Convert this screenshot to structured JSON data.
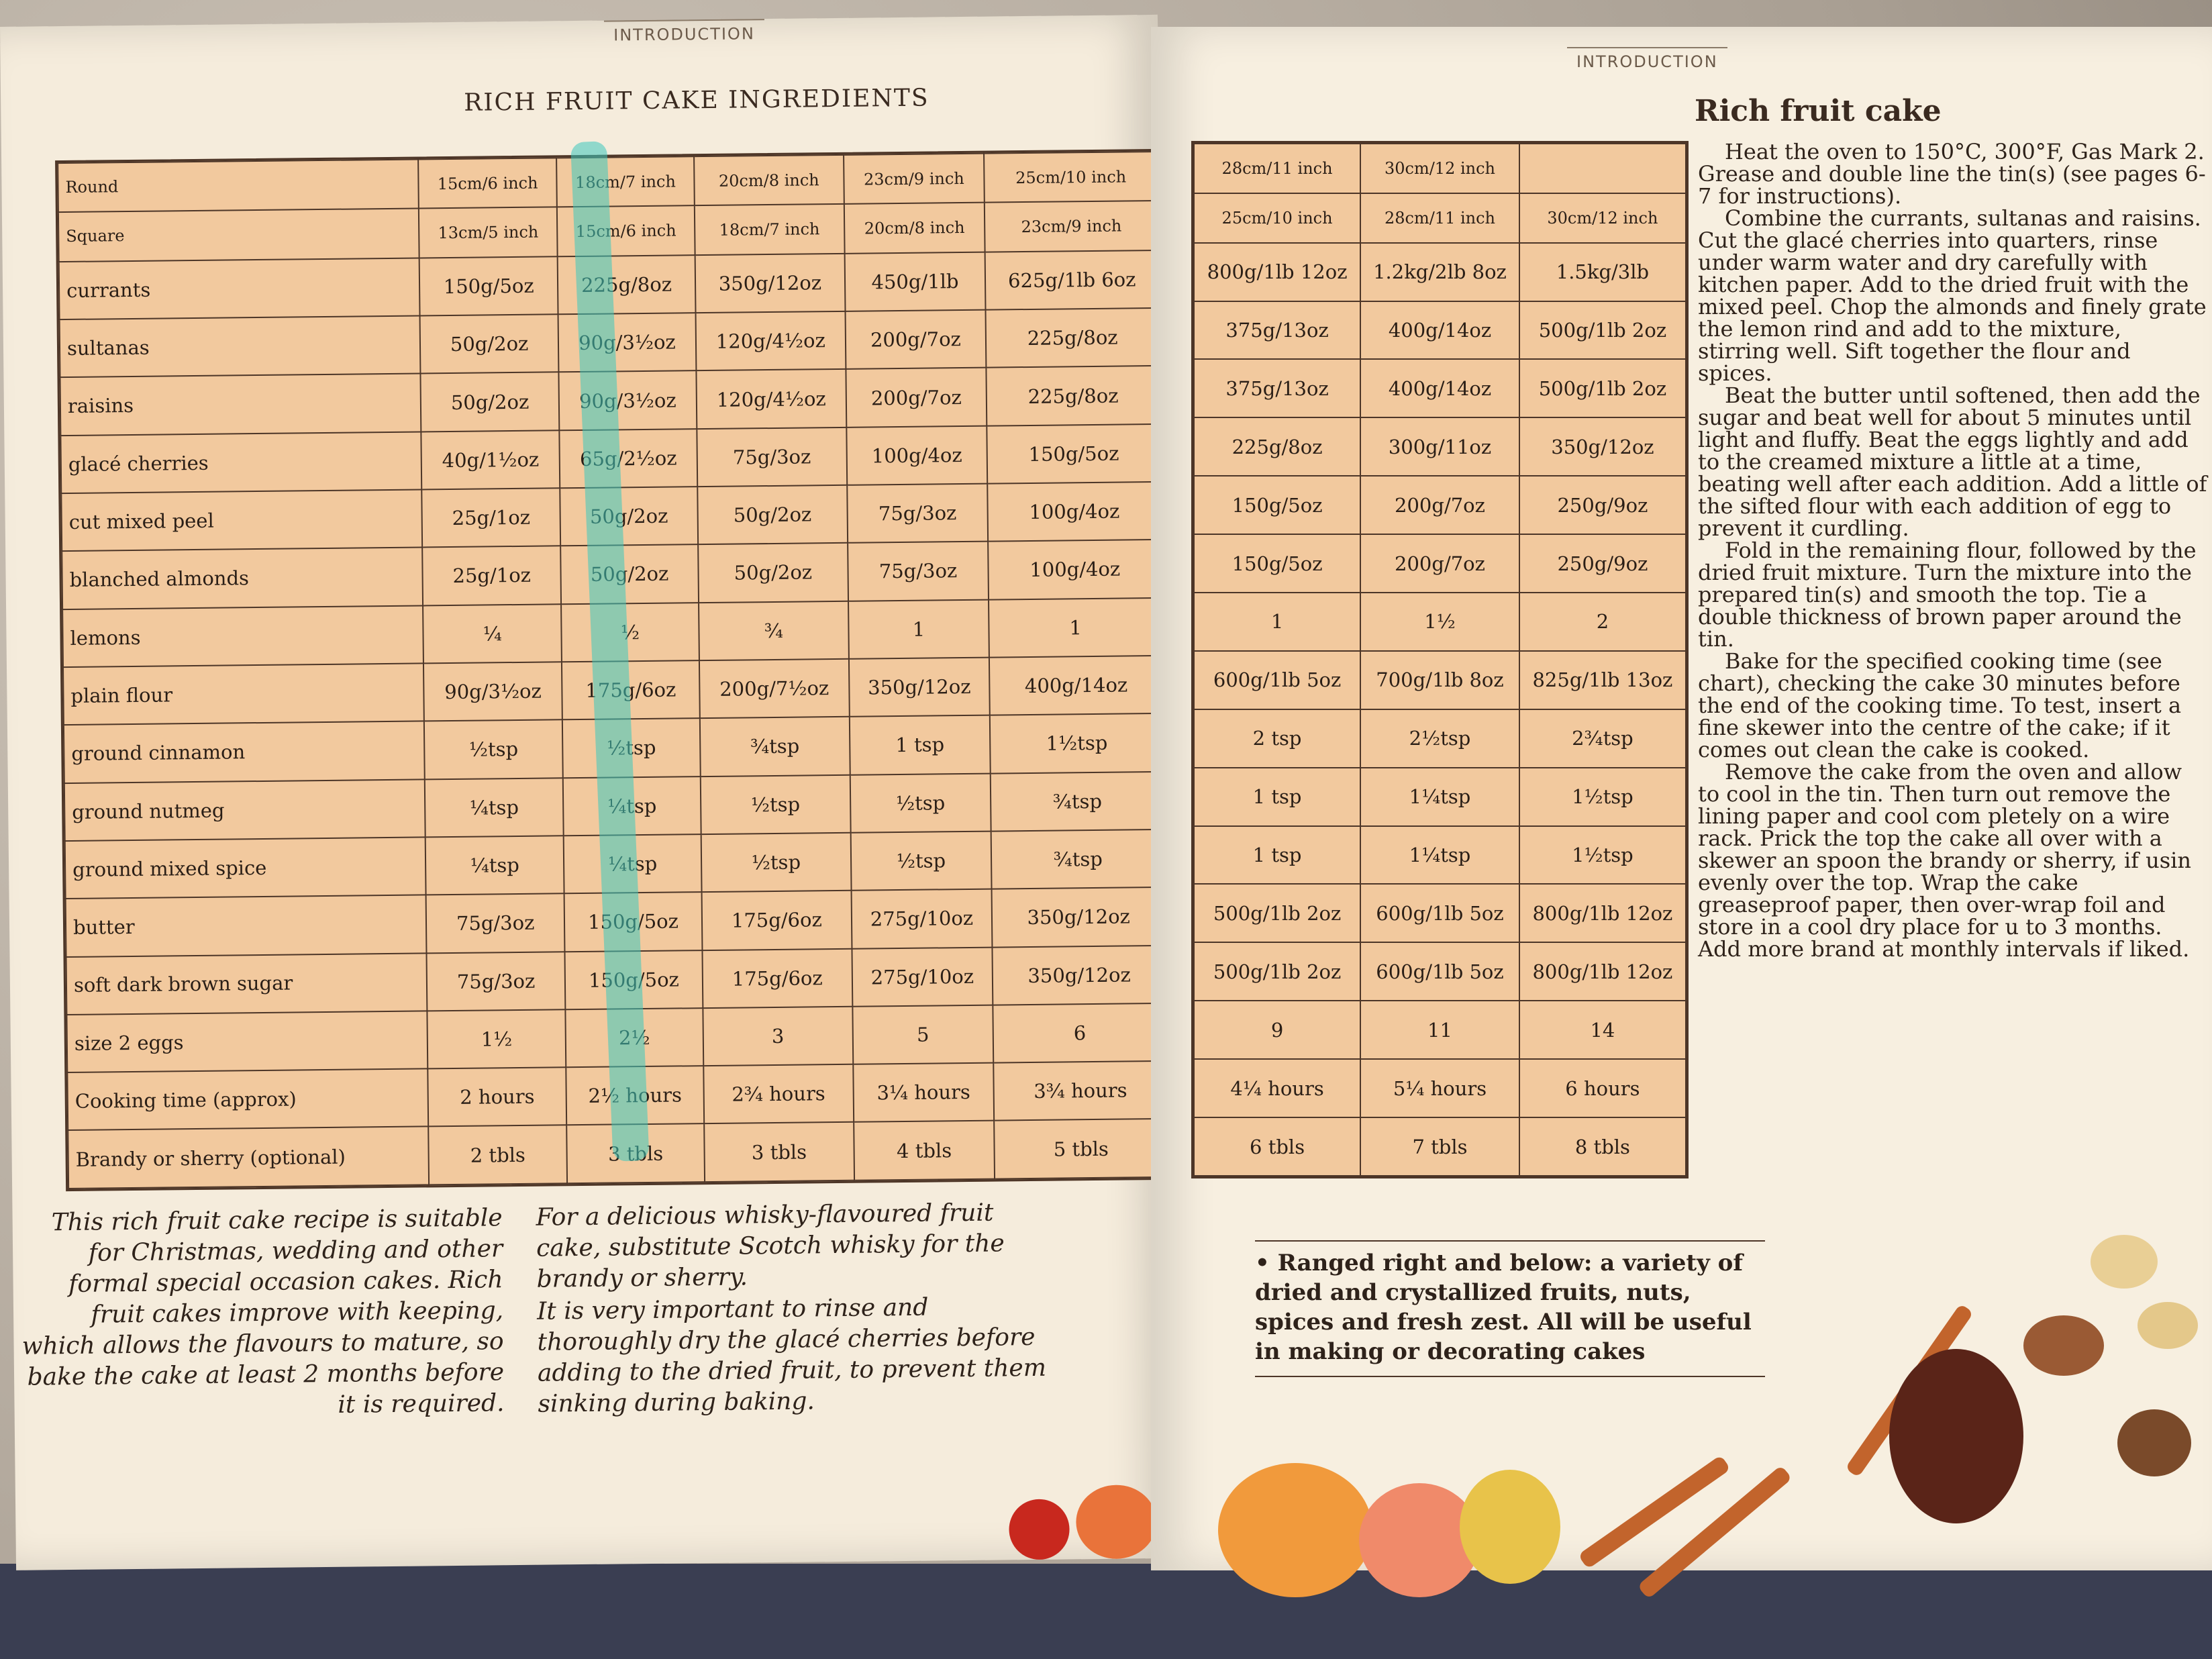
{
  "left_page": {
    "running_head": "INTRODUCTION",
    "title": "RICH FRUIT CAKE INGREDIENTS",
    "intro_text": "This rich fruit cake recipe is suitable for Christmas, wedding and other formal special occasion cakes. Rich fruit cakes improve with keeping, which allows the flavours to mature, so bake the cake at least 2 months before it is required.",
    "tip_text_1": "For a delicious whisky-flavoured fruit cake, substitute Scotch whisky for the brandy or sherry.",
    "tip_text_2": "It is very important to rinse and thoroughly dry the glacé cherries before adding to the dried fruit, to prevent them sinking during baking."
  },
  "right_page": {
    "running_head": "INTRODUCTION",
    "method_title": "Rich fruit cake",
    "method_paragraphs": [
      "Heat the oven to 150°C, 300°F, Gas Mark 2. Grease and double line the tin(s) (see pages 6-7 for instructions).",
      "Combine the currants, sultanas and raisins. Cut the glacé cherries into quarters, rinse under warm water and dry carefully with kitchen paper. Add to the dried fruit with the mixed peel. Chop the almonds and finely grate the lemon rind and add to the mixture, stirring well. Sift together the flour and spices.",
      "Beat the butter until softened, then add the sugar and beat well for about 5 minutes until light and fluffy. Beat the eggs lightly and add to the creamed mixture a little at a time, beating well after each addition. Add a little of the sifted flour with each addition of egg to prevent it curdling.",
      "Fold in the remaining flour, followed by the dried fruit mixture. Turn the mixture into the prepared tin(s) and smooth the top. Tie a double thickness of brown paper around the tin.",
      "Bake for the specified cooking time (see chart), checking the cake 30 minutes before the end of the cooking time. To test, insert a fine skewer into the centre of the cake; if it comes out clean the cake is cooked.",
      "Remove the cake from the oven and allow to cool in the tin. Then turn out remove the lining paper and cool com pletely on a wire rack. Prick the top the cake all over with a skewer an spoon the brandy or sherry, if usin evenly over the top. Wrap the cake greaseproof paper, then over-wrap foil and store in a cool dry place for u to 3 months. Add more brand at monthly intervals if liked."
    ],
    "caption": "• Ranged right and below: a variety of dried and crystallized fruits, nuts, spices and fresh zest. All will be useful in making or decorating cakes"
  },
  "table_left": {
    "row_labels": [
      "Round",
      "Square",
      "currants",
      "sultanas",
      "raisins",
      "glacé cherries",
      "cut mixed peel",
      "blanched almonds",
      "lemons",
      "plain flour",
      "ground cinnamon",
      "ground nutmeg",
      "ground mixed spice",
      "butter",
      "soft dark brown sugar",
      "size 2 eggs",
      "Cooking time (approx)",
      "Brandy or sherry (optional)"
    ],
    "columns": [
      [
        "15cm/6 inch",
        "13cm/5 inch",
        "150g/5oz",
        "50g/2oz",
        "50g/2oz",
        "40g/1½oz",
        "25g/1oz",
        "25g/1oz",
        "¼",
        "90g/3½oz",
        "½tsp",
        "¼tsp",
        "¼tsp",
        "75g/3oz",
        "75g/3oz",
        "1½",
        "2 hours",
        "2 tbls"
      ],
      [
        "18cm/7 inch",
        "15cm/6 inch",
        "225g/8oz",
        "90g/3½oz",
        "90g/3½oz",
        "65g/2½oz",
        "50g/2oz",
        "50g/2oz",
        "½",
        "175g/6oz",
        "½tsp",
        "¼tsp",
        "¼tsp",
        "150g/5oz",
        "150g/5oz",
        "2½",
        "2½ hours",
        "3 tbls"
      ],
      [
        "20cm/8 inch",
        "18cm/7 inch",
        "350g/12oz",
        "120g/4½oz",
        "120g/4½oz",
        "75g/3oz",
        "50g/2oz",
        "50g/2oz",
        "¾",
        "200g/7½oz",
        "¾tsp",
        "½tsp",
        "½tsp",
        "175g/6oz",
        "175g/6oz",
        "3",
        "2¾ hours",
        "3 tbls"
      ],
      [
        "23cm/9 inch",
        "20cm/8 inch",
        "450g/1lb",
        "200g/7oz",
        "200g/7oz",
        "100g/4oz",
        "75g/3oz",
        "75g/3oz",
        "1",
        "350g/12oz",
        "1 tsp",
        "½tsp",
        "½tsp",
        "275g/10oz",
        "275g/10oz",
        "5",
        "3¼ hours",
        "4 tbls"
      ],
      [
        "25cm/10 inch",
        "23cm/9 inch",
        "625g/1lb 6oz",
        "225g/8oz",
        "225g/8oz",
        "150g/5oz",
        "100g/4oz",
        "100g/4oz",
        "1",
        "400g/14oz",
        "1½tsp",
        "¾tsp",
        "¾tsp",
        "350g/12oz",
        "350g/12oz",
        "6",
        "3¾ hours",
        "5 tbls"
      ]
    ]
  },
  "table_right": {
    "columns": [
      [
        "28cm/11 inch",
        "25cm/10 inch",
        "800g/1lb 12oz",
        "375g/13oz",
        "375g/13oz",
        "225g/8oz",
        "150g/5oz",
        "150g/5oz",
        "1",
        "600g/1lb 5oz",
        "2 tsp",
        "1 tsp",
        "1 tsp",
        "500g/1lb 2oz",
        "500g/1lb 2oz",
        "9",
        "4¼ hours",
        "6 tbls"
      ],
      [
        "30cm/12 inch",
        "28cm/11 inch",
        "1.2kg/2lb 8oz",
        "400g/14oz",
        "400g/14oz",
        "300g/11oz",
        "200g/7oz",
        "200g/7oz",
        "1½",
        "700g/1lb 8oz",
        "2½tsp",
        "1¼tsp",
        "1¼tsp",
        "600g/1lb 5oz",
        "600g/1lb 5oz",
        "11",
        "5¼ hours",
        "7 tbls"
      ],
      [
        "",
        "30cm/12 inch",
        "1.5kg/3lb",
        "500g/1lb 2oz",
        "500g/1lb 2oz",
        "350g/12oz",
        "250g/9oz",
        "250g/9oz",
        "2",
        "825g/1lb 13oz",
        "2¾tsp",
        "1½tsp",
        "1½tsp",
        "800g/1lb 12oz",
        "800g/1lb 12oz",
        "14",
        "6 hours",
        "8 tbls"
      ]
    ]
  },
  "colors": {
    "table_fill": "#f2c99e",
    "rule": "#4d3628",
    "highlighter": "#3cc8be",
    "page": "#f5ecdc"
  }
}
